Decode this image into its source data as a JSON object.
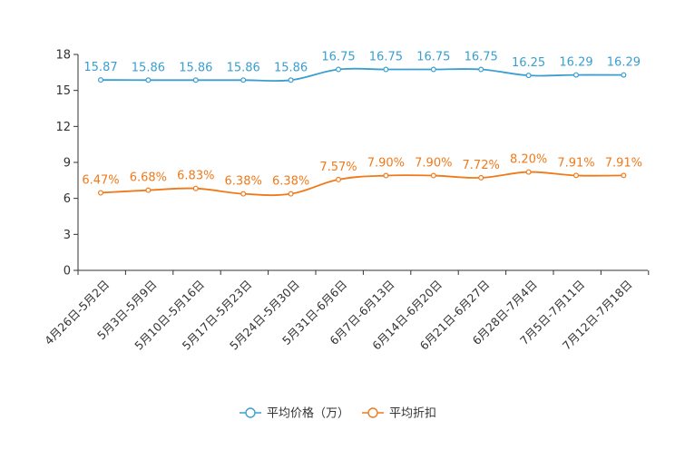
{
  "chart_data": {
    "type": "line",
    "title": "",
    "xlabel": "",
    "ylabel": "",
    "ylim": [
      0,
      18
    ],
    "yticks": [
      0,
      3,
      6,
      9,
      12,
      15,
      18
    ],
    "grid": false,
    "legend_position": "bottom-center",
    "categories": [
      "4月26日-5月2日",
      "5月3日-5月9日",
      "5月10日-5月16日",
      "5月17日-5月23日",
      "5月24日-5月30日",
      "5月31日-6月6日",
      "6月7日-6月13日",
      "6月14日-6月20日",
      "6月21日-6月27日",
      "6月28日-7月4日",
      "7月5日-7月11日",
      "7月12日-7月18日"
    ],
    "series": [
      {
        "name": "平均价格（万）",
        "color": "#3a9fd0",
        "values": [
          15.87,
          15.86,
          15.86,
          15.86,
          15.86,
          16.75,
          16.75,
          16.75,
          16.75,
          16.25,
          16.29,
          16.29
        ],
        "labels": [
          "15.87",
          "15.86",
          "15.86",
          "15.86",
          "15.86",
          "16.75",
          "16.75",
          "16.75",
          "16.75",
          "16.25",
          "16.29",
          "16.29"
        ]
      },
      {
        "name": "平均折扣",
        "color": "#f07a1a",
        "values": [
          6.47,
          6.68,
          6.83,
          6.38,
          6.38,
          7.57,
          7.9,
          7.9,
          7.72,
          8.2,
          7.91,
          7.91
        ],
        "labels": [
          "6.47%",
          "6.68%",
          "6.83%",
          "6.38%",
          "6.38%",
          "7.57%",
          "7.90%",
          "7.90%",
          "7.72%",
          "8.20%",
          "7.91%",
          "7.91%"
        ]
      }
    ]
  }
}
